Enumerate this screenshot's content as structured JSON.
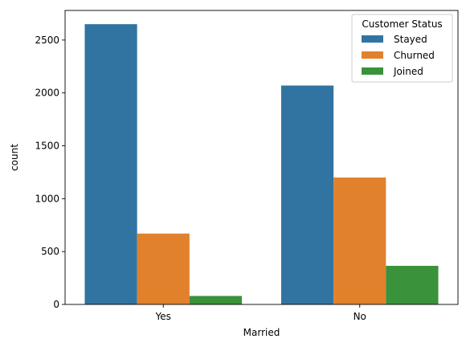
{
  "chart_data": {
    "type": "bar",
    "categories": [
      "Yes",
      "No"
    ],
    "series": [
      {
        "name": "Stayed",
        "values": [
          2650,
          2070
        ],
        "color": "#3274a1"
      },
      {
        "name": "Churned",
        "values": [
          670,
          1200
        ],
        "color": "#e1812c"
      },
      {
        "name": "Joined",
        "values": [
          80,
          365
        ],
        "color": "#3a923a"
      }
    ],
    "xlabel": "Married",
    "ylabel": "count",
    "ylim": [
      0,
      2780
    ],
    "yticks": [
      0,
      500,
      1000,
      1500,
      2000,
      2500
    ],
    "grid": false,
    "legend": {
      "title": "Customer Status",
      "placement": "top-right"
    }
  }
}
